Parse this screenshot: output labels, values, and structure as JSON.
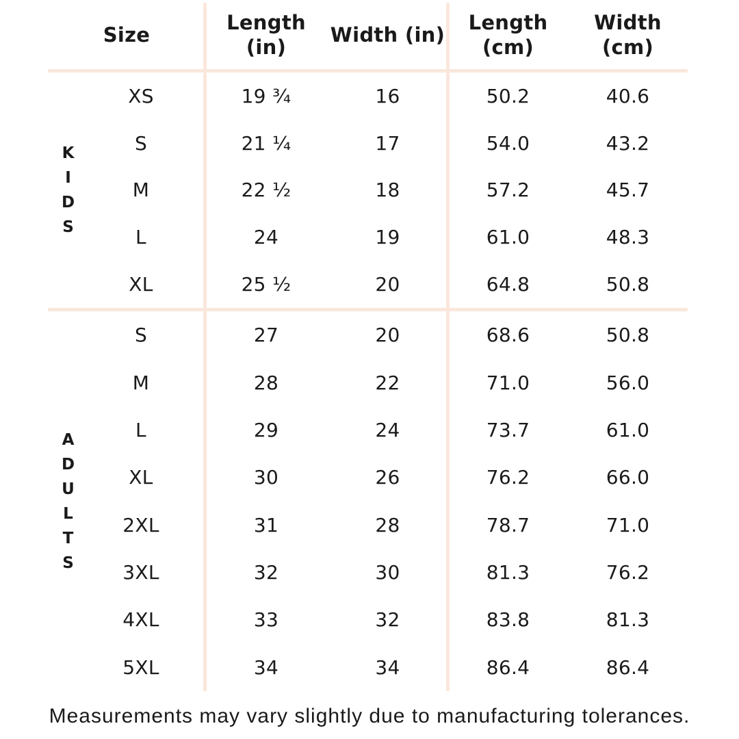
{
  "colors": {
    "background": "#ffffff",
    "divider_line": "#fae7dc",
    "text": "#1a1a1a"
  },
  "chart_data": {
    "type": "table",
    "columns": {
      "size": "Size",
      "length_in": "Length\n(in)",
      "width_in": "Width (in)",
      "length_cm": "Length\n(cm)",
      "width_cm": "Width\n(cm)"
    },
    "groups": [
      {
        "label": "KIDS",
        "rows": [
          {
            "size": "XS",
            "length_in": "19 ¾",
            "width_in": "16",
            "length_cm": "50.2",
            "width_cm": "40.6"
          },
          {
            "size": "S",
            "length_in": "21 ¼",
            "width_in": "17",
            "length_cm": "54.0",
            "width_cm": "43.2"
          },
          {
            "size": "M",
            "length_in": "22 ½",
            "width_in": "18",
            "length_cm": "57.2",
            "width_cm": "45.7"
          },
          {
            "size": "L",
            "length_in": "24",
            "width_in": "19",
            "length_cm": "61.0",
            "width_cm": "48.3"
          },
          {
            "size": "XL",
            "length_in": "25 ½",
            "width_in": "20",
            "length_cm": "64.8",
            "width_cm": "50.8"
          }
        ]
      },
      {
        "label": "ADULTS",
        "rows": [
          {
            "size": "S",
            "length_in": "27",
            "width_in": "20",
            "length_cm": "68.6",
            "width_cm": "50.8"
          },
          {
            "size": "M",
            "length_in": "28",
            "width_in": "22",
            "length_cm": "71.0",
            "width_cm": "56.0"
          },
          {
            "size": "L",
            "length_in": "29",
            "width_in": "24",
            "length_cm": "73.7",
            "width_cm": "61.0"
          },
          {
            "size": "XL",
            "length_in": "30",
            "width_in": "26",
            "length_cm": "76.2",
            "width_cm": "66.0"
          },
          {
            "size": "2XL",
            "length_in": "31",
            "width_in": "28",
            "length_cm": "78.7",
            "width_cm": "71.0"
          },
          {
            "size": "3XL",
            "length_in": "32",
            "width_in": "30",
            "length_cm": "81.3",
            "width_cm": "76.2"
          },
          {
            "size": "4XL",
            "length_in": "33",
            "width_in": "32",
            "length_cm": "83.8",
            "width_cm": "81.3"
          },
          {
            "size": "5XL",
            "length_in": "34",
            "width_in": "34",
            "length_cm": "86.4",
            "width_cm": "86.4"
          }
        ]
      }
    ]
  },
  "footer": {
    "note": "Measurements may vary slightly due to manufacturing tolerances."
  }
}
